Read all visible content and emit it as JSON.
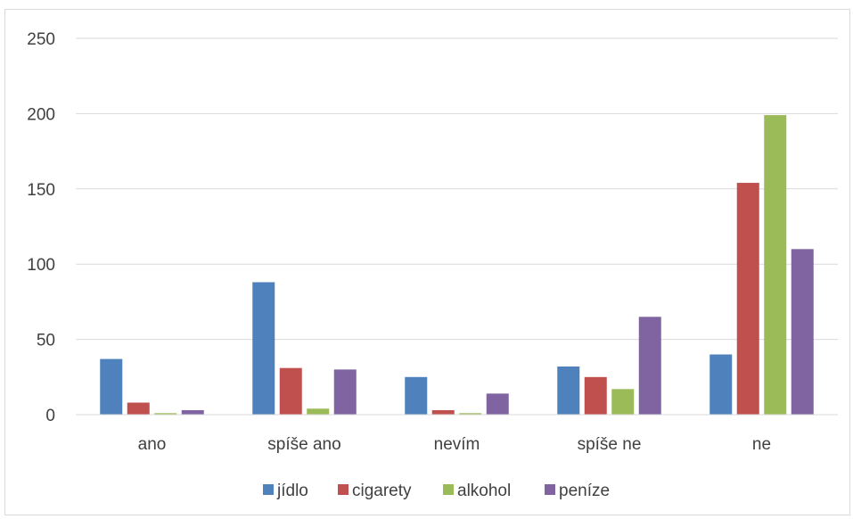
{
  "chart_data": {
    "type": "bar",
    "title": "",
    "xlabel": "",
    "ylabel": "",
    "ylim": [
      0,
      250
    ],
    "yticks": [
      0,
      50,
      100,
      150,
      200,
      250
    ],
    "grid": true,
    "legend_position": "bottom",
    "categories": [
      "ano",
      "spíše ano",
      "nevím",
      "spíše ne",
      "ne"
    ],
    "series": [
      {
        "name": "jídlo",
        "color": "#4f81bd",
        "values": [
          37,
          88,
          25,
          32,
          40
        ]
      },
      {
        "name": "cigarety",
        "color": "#c0504d",
        "values": [
          8,
          31,
          3,
          25,
          154
        ]
      },
      {
        "name": "alkohol",
        "color": "#9bbb59",
        "values": [
          1,
          4,
          1,
          17,
          199
        ]
      },
      {
        "name": "peníze",
        "color": "#8064a2",
        "values": [
          3,
          30,
          14,
          65,
          110
        ]
      }
    ]
  }
}
